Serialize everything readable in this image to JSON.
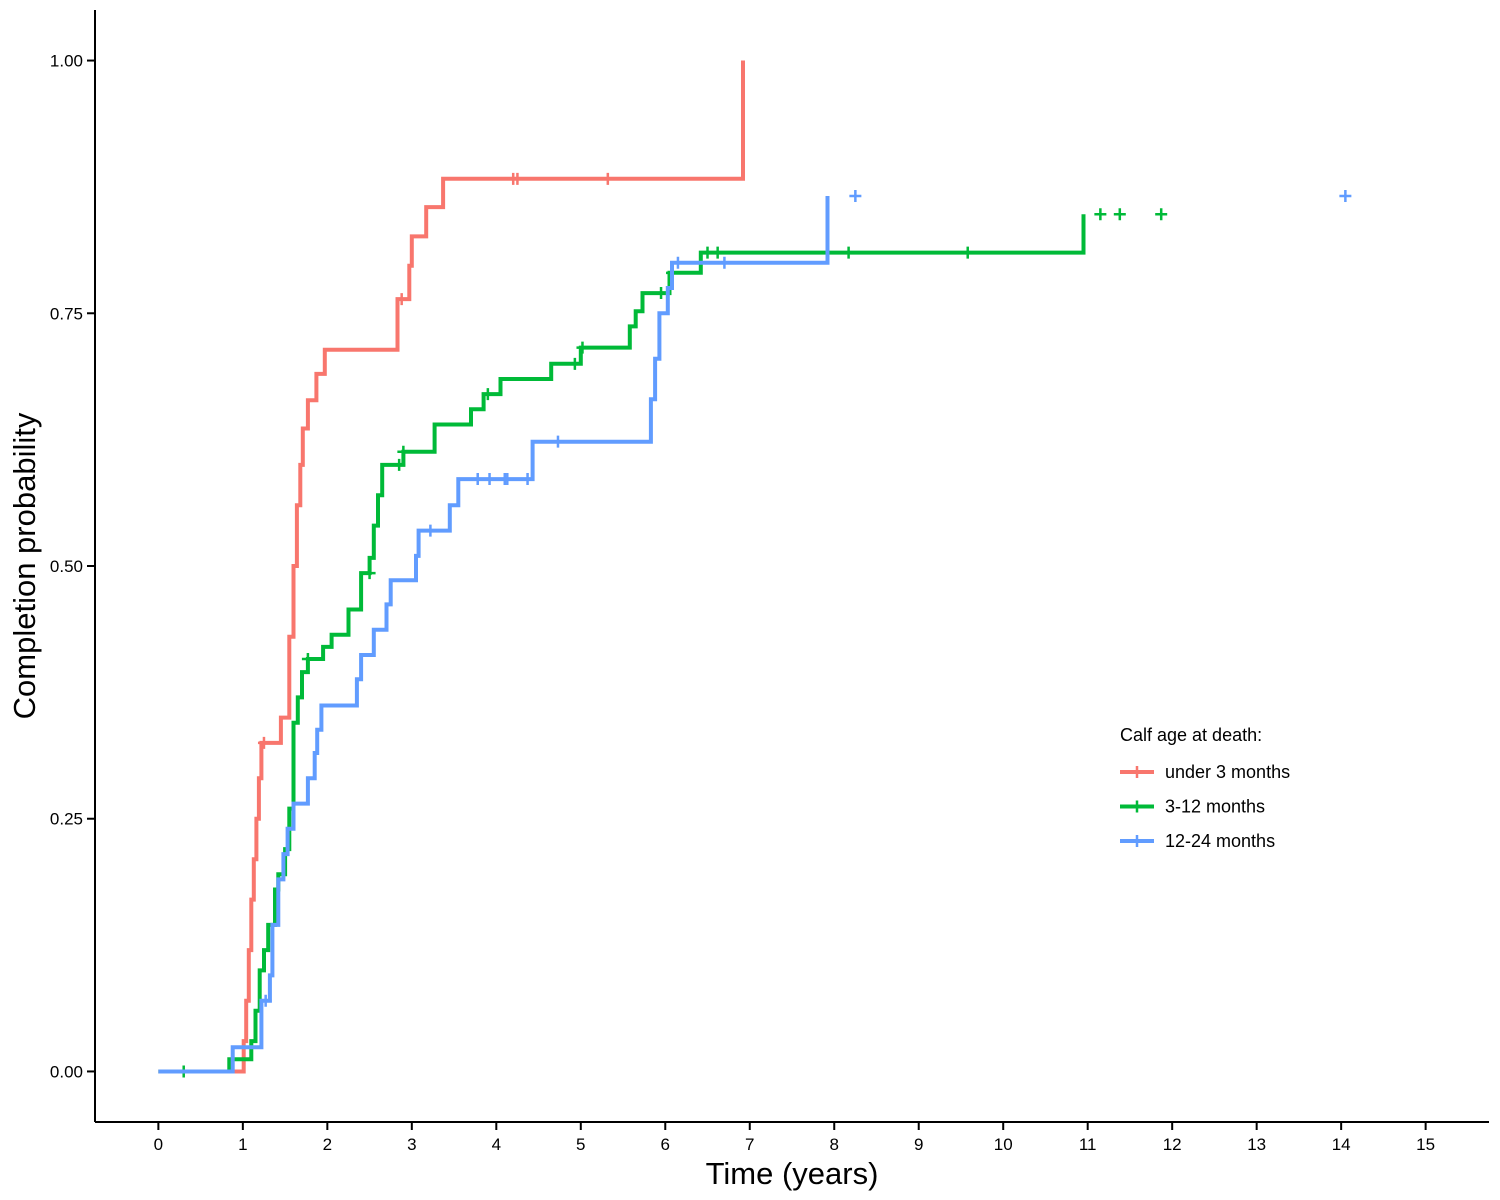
{
  "chart_data": {
    "type": "line",
    "title": "",
    "xlabel": "Time (years)",
    "ylabel": "Completion probability",
    "xlim": [
      -0.75,
      15.75
    ],
    "ylim": [
      -0.05,
      1.05
    ],
    "x_ticks": [
      "0",
      "1",
      "2",
      "3",
      "4",
      "5",
      "6",
      "7",
      "8",
      "9",
      "10",
      "11",
      "12",
      "13",
      "14",
      "15"
    ],
    "y_ticks": [
      "0.00",
      "0.25",
      "0.50",
      "0.75",
      "1.00"
    ],
    "grid": false,
    "legend": {
      "title": "Calf age at death:",
      "placement": "right-center"
    },
    "series": [
      {
        "name": "under 3 months",
        "color": "#F8766D",
        "steps": [
          [
            0,
            0
          ],
          [
            0.99,
            0
          ],
          [
            1.01,
            0.03
          ],
          [
            1.04,
            0.07
          ],
          [
            1.07,
            0.12
          ],
          [
            1.1,
            0.17
          ],
          [
            1.13,
            0.21
          ],
          [
            1.16,
            0.25
          ],
          [
            1.19,
            0.29
          ],
          [
            1.22,
            0.325
          ],
          [
            1.45,
            0.35
          ],
          [
            1.55,
            0.43
          ],
          [
            1.6,
            0.5
          ],
          [
            1.64,
            0.56
          ],
          [
            1.68,
            0.6
          ],
          [
            1.71,
            0.636
          ],
          [
            1.77,
            0.664
          ],
          [
            1.87,
            0.69
          ],
          [
            1.97,
            0.714
          ],
          [
            2.83,
            0.764
          ],
          [
            2.97,
            0.797
          ],
          [
            3.0,
            0.826
          ],
          [
            3.17,
            0.855
          ],
          [
            3.37,
            0.883
          ],
          [
            6.92,
            0.883
          ],
          [
            6.92,
            1.0
          ]
        ],
        "censored": [
          [
            1.25,
            0.325
          ],
          [
            2.88,
            0.764
          ],
          [
            4.2,
            0.883
          ],
          [
            4.25,
            0.883
          ],
          [
            5.32,
            0.883
          ]
        ]
      },
      {
        "name": "3-12 months",
        "color": "#00BA38",
        "steps": [
          [
            0,
            0
          ],
          [
            0.82,
            0
          ],
          [
            0.84,
            0.012
          ],
          [
            1.05,
            0.012
          ],
          [
            1.1,
            0.03
          ],
          [
            1.15,
            0.06
          ],
          [
            1.2,
            0.1
          ],
          [
            1.25,
            0.12
          ],
          [
            1.3,
            0.145
          ],
          [
            1.38,
            0.18
          ],
          [
            1.42,
            0.195
          ],
          [
            1.5,
            0.22
          ],
          [
            1.55,
            0.26
          ],
          [
            1.6,
            0.345
          ],
          [
            1.65,
            0.37
          ],
          [
            1.7,
            0.395
          ],
          [
            1.77,
            0.408
          ],
          [
            1.95,
            0.42
          ],
          [
            2.05,
            0.432
          ],
          [
            2.25,
            0.457
          ],
          [
            2.4,
            0.493
          ],
          [
            2.5,
            0.508
          ],
          [
            2.55,
            0.54
          ],
          [
            2.6,
            0.57
          ],
          [
            2.65,
            0.6
          ],
          [
            2.9,
            0.613
          ],
          [
            3.27,
            0.64
          ],
          [
            3.7,
            0.655
          ],
          [
            3.85,
            0.67
          ],
          [
            4.05,
            0.685
          ],
          [
            4.65,
            0.7
          ],
          [
            5.0,
            0.716
          ],
          [
            5.58,
            0.737
          ],
          [
            5.65,
            0.752
          ],
          [
            5.73,
            0.77
          ],
          [
            6.05,
            0.79
          ],
          [
            6.42,
            0.81
          ],
          [
            10.95,
            0.81
          ],
          [
            10.95,
            0.848
          ]
        ],
        "censored": [
          [
            0.3,
            0
          ],
          [
            1.77,
            0.408
          ],
          [
            2.5,
            0.493
          ],
          [
            2.85,
            0.6
          ],
          [
            2.9,
            0.613
          ],
          [
            3.9,
            0.67
          ],
          [
            4.93,
            0.7
          ],
          [
            5.02,
            0.716
          ],
          [
            5.95,
            0.77
          ],
          [
            6.08,
            0.79
          ],
          [
            6.5,
            0.81
          ],
          [
            6.62,
            0.81
          ],
          [
            8.17,
            0.81
          ],
          [
            9.58,
            0.81
          ],
          [
            11.15,
            0.848
          ],
          [
            11.38,
            0.848
          ],
          [
            11.87,
            0.848
          ]
        ]
      },
      {
        "name": "12-24 months",
        "color": "#619CFF",
        "steps": [
          [
            0,
            0
          ],
          [
            0.85,
            0
          ],
          [
            0.88,
            0.024
          ],
          [
            1.2,
            0.024
          ],
          [
            1.22,
            0.07
          ],
          [
            1.32,
            0.095
          ],
          [
            1.35,
            0.145
          ],
          [
            1.42,
            0.19
          ],
          [
            1.48,
            0.215
          ],
          [
            1.53,
            0.24
          ],
          [
            1.6,
            0.265
          ],
          [
            1.77,
            0.29
          ],
          [
            1.85,
            0.315
          ],
          [
            1.88,
            0.338
          ],
          [
            1.93,
            0.362
          ],
          [
            2.35,
            0.388
          ],
          [
            2.4,
            0.412
          ],
          [
            2.55,
            0.437
          ],
          [
            2.7,
            0.462
          ],
          [
            2.75,
            0.486
          ],
          [
            3.05,
            0.51
          ],
          [
            3.08,
            0.535
          ],
          [
            3.45,
            0.56
          ],
          [
            3.55,
            0.586
          ],
          [
            4.43,
            0.623
          ],
          [
            5.8,
            0.623
          ],
          [
            5.83,
            0.665
          ],
          [
            5.88,
            0.705
          ],
          [
            5.93,
            0.75
          ],
          [
            6.03,
            0.775
          ],
          [
            6.08,
            0.8
          ],
          [
            7.92,
            0.8
          ],
          [
            7.92,
            0.866
          ]
        ],
        "censored": [
          [
            1.27,
            0.07
          ],
          [
            3.22,
            0.535
          ],
          [
            3.78,
            0.586
          ],
          [
            3.92,
            0.586
          ],
          [
            4.1,
            0.586
          ],
          [
            4.13,
            0.586
          ],
          [
            4.37,
            0.586
          ],
          [
            4.73,
            0.623
          ],
          [
            6.15,
            0.8
          ],
          [
            6.7,
            0.8
          ],
          [
            8.25,
            0.866
          ],
          [
            14.05,
            0.866
          ]
        ]
      }
    ]
  }
}
